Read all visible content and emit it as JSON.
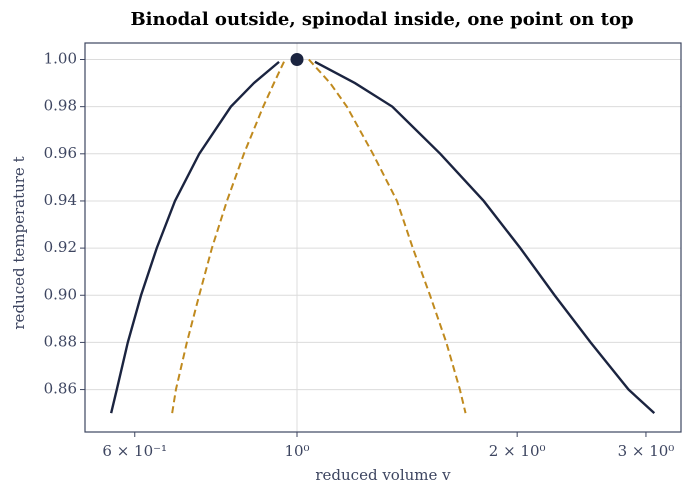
{
  "chart_data": {
    "type": "line",
    "title": "Binodal outside, spinodal inside, one point on top",
    "xlabel": "reduced volume v",
    "ylabel": "reduced temperature t",
    "xscale": "log",
    "xlim": [
      0.513,
      3.35
    ],
    "ylim": [
      0.842,
      1.007
    ],
    "xticks": [
      {
        "value": 0.6,
        "label": "6 × 10⁻¹"
      },
      {
        "value": 1,
        "label": "10⁰"
      },
      {
        "value": 2,
        "label": "2 × 10⁰"
      },
      {
        "value": 3,
        "label": "3 × 10⁰"
      }
    ],
    "yticks": [
      {
        "value": 0.86,
        "label": "0.86"
      },
      {
        "value": 0.88,
        "label": "0.88"
      },
      {
        "value": 0.9,
        "label": "0.90"
      },
      {
        "value": 0.92,
        "label": "0.92"
      },
      {
        "value": 0.94,
        "label": "0.94"
      },
      {
        "value": 0.96,
        "label": "0.96"
      },
      {
        "value": 0.98,
        "label": "0.98"
      },
      {
        "value": 1,
        "label": "1.00"
      }
    ],
    "grid": true,
    "series": [
      {
        "color": "#1b2440",
        "dash": false,
        "x": [
          0.557,
          0.567,
          0.587,
          0.612,
          0.643,
          0.681,
          0.735,
          0.812,
          0.873,
          0.945,
          null,
          1.058,
          1.2,
          1.35,
          1.57,
          1.8,
          2.02,
          2.25,
          2.52,
          2.84,
          3.08
        ],
        "values": [
          0.85,
          0.86,
          0.88,
          0.9,
          0.92,
          0.94,
          0.96,
          0.98,
          0.99,
          0.999,
          null,
          0.999,
          0.99,
          0.98,
          0.96,
          0.94,
          0.92,
          0.9,
          0.88,
          0.86,
          0.85
        ]
      },
      {
        "color": "#c08a1e",
        "dash": true,
        "x": [
          0.675,
          0.683,
          0.707,
          0.735,
          0.765,
          0.802,
          0.846,
          0.899,
          0.93,
          0.963,
          null,
          1.038,
          1.11,
          1.17,
          1.27,
          1.37,
          1.44,
          1.52,
          1.6,
          1.67,
          1.7
        ],
        "values": [
          0.85,
          0.86,
          0.88,
          0.9,
          0.92,
          0.94,
          0.96,
          0.98,
          0.99,
          1.0,
          null,
          1.0,
          0.99,
          0.98,
          0.96,
          0.94,
          0.92,
          0.9,
          0.88,
          0.86,
          0.85
        ]
      }
    ],
    "points": {
      "color": "#1b2440",
      "x": [
        1
      ],
      "values": [
        1
      ]
    }
  }
}
